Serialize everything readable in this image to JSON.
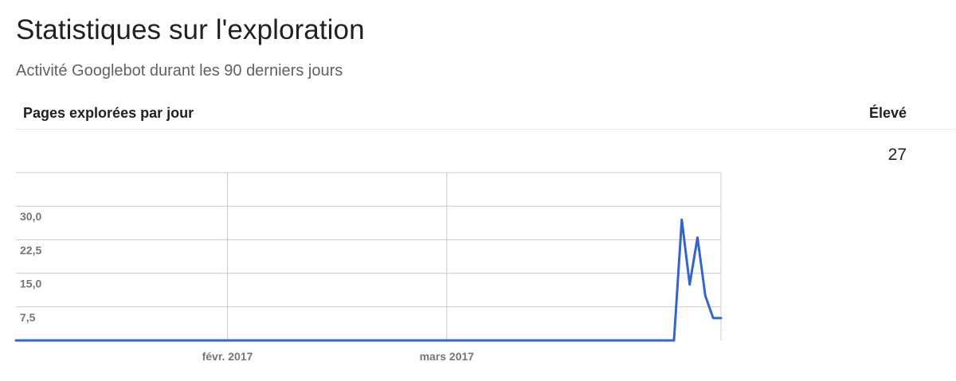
{
  "page": {
    "title": "Statistiques sur l'exploration",
    "subtitle": "Activité Googlebot durant les 90 derniers jours"
  },
  "metric": {
    "label": "Pages explorées par jour",
    "high_label": "Élevé",
    "high_value": "27"
  },
  "colors": {
    "series": "#3366cc",
    "grid": "#cccccc",
    "tick_text": "#757575"
  },
  "chart_data": {
    "type": "line",
    "title": "Pages explorées par jour",
    "xlabel": "",
    "ylabel": "",
    "ylim": [
      0,
      37.5
    ],
    "yticks": [
      7.5,
      15,
      22.5,
      30
    ],
    "ytick_labels": [
      "7,5",
      "15,0",
      "22,5",
      "30,0"
    ],
    "xlim": [
      0,
      90
    ],
    "xticks": [
      {
        "x": 27,
        "label": "févr. 2017"
      },
      {
        "x": 55,
        "label": "mars 2017"
      }
    ],
    "series": [
      {
        "name": "Pages explorées par jour",
        "x": [
          0,
          84,
          85,
          86,
          87,
          88,
          89,
          90
        ],
        "y": [
          0,
          0,
          27,
          12.5,
          23,
          10,
          5,
          5
        ]
      }
    ]
  }
}
